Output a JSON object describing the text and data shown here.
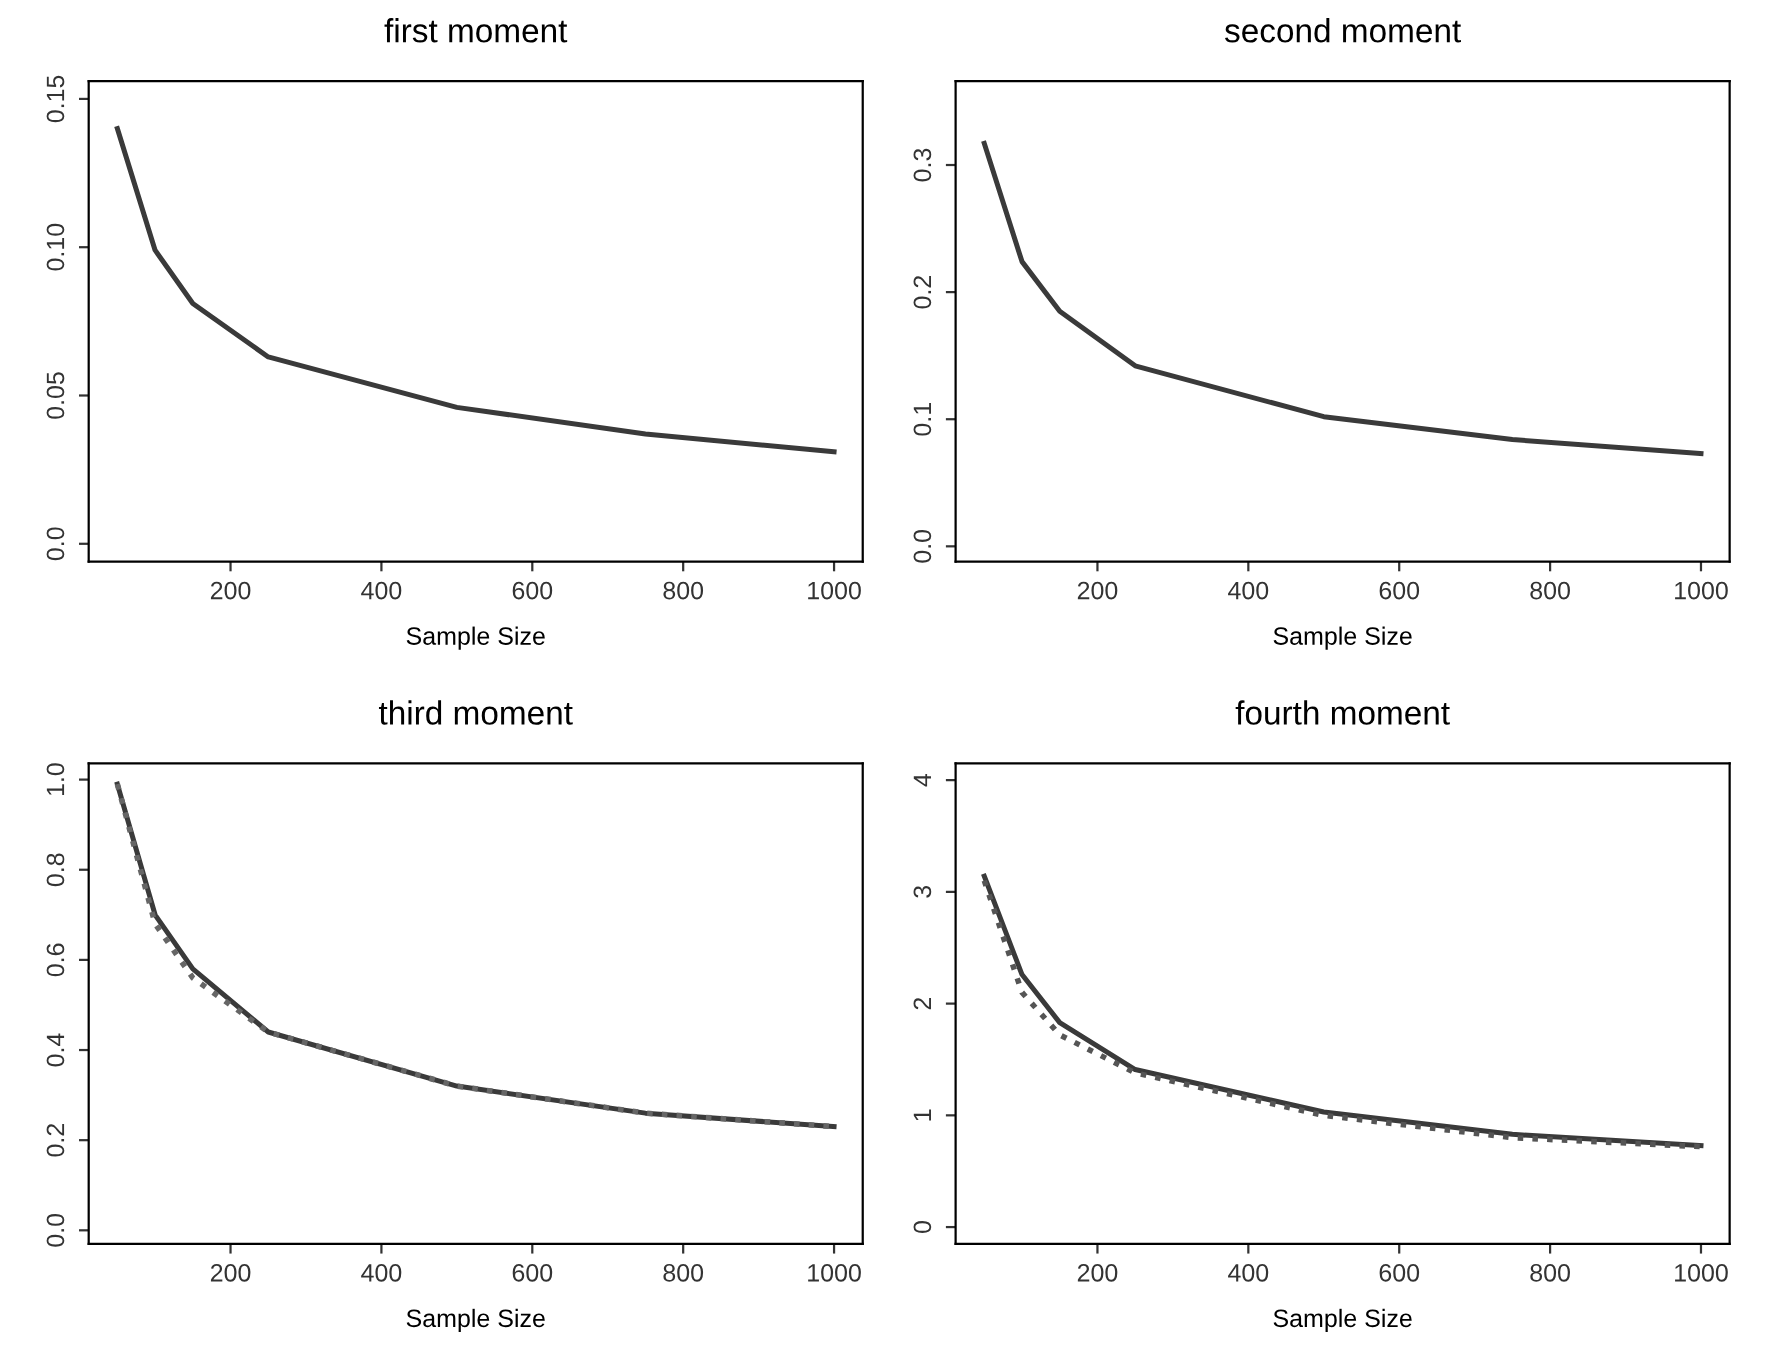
{
  "chart_data": [
    {
      "type": "line",
      "title": "first moment",
      "xlabel": "Sample Size",
      "x": [
        50,
        100,
        150,
        250,
        500,
        750,
        1000
      ],
      "series": [
        {
          "color": "#3a3a3a",
          "line_style": "solid",
          "values": [
            0.14,
            0.099,
            0.081,
            0.063,
            0.046,
            0.037,
            0.031
          ]
        }
      ],
      "xlim": [
        12,
        1038
      ],
      "xticks": [
        200,
        400,
        600,
        800,
        1000
      ],
      "ylim": [
        -0.006,
        0.156
      ],
      "yticks": [
        {
          "value": 0,
          "label": "0.0"
        },
        {
          "value": 0.05,
          "label": "0.05"
        },
        {
          "value": 0.1,
          "label": "0.10"
        },
        {
          "value": 0.15,
          "label": "0.15"
        }
      ],
      "grid": false,
      "legend": false,
      "marker": "none"
    },
    {
      "type": "line",
      "title": "second moment",
      "xlabel": "Sample Size",
      "x": [
        50,
        100,
        150,
        250,
        500,
        750,
        1000
      ],
      "series": [
        {
          "color": "#3a3a3a",
          "line_style": "solid",
          "values": [
            0.317,
            0.224,
            0.185,
            0.142,
            0.102,
            0.084,
            0.073
          ]
        }
      ],
      "xlim": [
        12,
        1038
      ],
      "xticks": [
        200,
        400,
        600,
        800,
        1000
      ],
      "ylim": [
        -0.012,
        0.366
      ],
      "yticks": [
        {
          "value": 0,
          "label": "0.0"
        },
        0.1,
        0.2,
        0.3
      ],
      "grid": false,
      "legend": false,
      "marker": "none"
    },
    {
      "type": "line",
      "title": "third moment",
      "xlabel": "Sample Size",
      "x": [
        50,
        100,
        150,
        250,
        500,
        750,
        1000
      ],
      "series": [
        {
          "color": "#3a3a3a",
          "line_style": "solid",
          "values": [
            0.99,
            0.7,
            0.58,
            0.44,
            0.32,
            0.26,
            0.23
          ]
        },
        {
          "color": "#666666",
          "line_style": "dotted",
          "values": [
            0.99,
            0.68,
            0.56,
            0.44,
            0.32,
            0.26,
            0.23
          ]
        }
      ],
      "xlim": [
        12,
        1038
      ],
      "xticks": [
        200,
        400,
        600,
        800,
        1000
      ],
      "ylim": [
        -0.03,
        1.036
      ],
      "yticks": [
        {
          "value": 0,
          "label": "0.0"
        },
        0.2,
        0.4,
        0.6,
        0.8,
        {
          "value": 1,
          "label": "1.0"
        }
      ],
      "grid": false,
      "legend": false,
      "marker": "none"
    },
    {
      "type": "line",
      "title": "fourth moment",
      "xlabel": "Sample Size",
      "x": [
        50,
        100,
        150,
        250,
        500,
        750,
        1000
      ],
      "series": [
        {
          "color": "#3a3a3a",
          "line_style": "solid",
          "values": [
            3.14,
            2.26,
            1.83,
            1.41,
            1.03,
            0.83,
            0.73
          ]
        },
        {
          "color": "#555555",
          "line_style": "dotted",
          "values": [
            3.1,
            2.1,
            1.72,
            1.38,
            1.0,
            0.8,
            0.72
          ]
        }
      ],
      "xlim": [
        12,
        1038
      ],
      "xticks": [
        200,
        400,
        600,
        800,
        1000
      ],
      "ylim": [
        -0.15,
        4.15
      ],
      "yticks": [
        0,
        1,
        2,
        3,
        4
      ],
      "grid": false,
      "legend": false,
      "marker": "none"
    }
  ]
}
